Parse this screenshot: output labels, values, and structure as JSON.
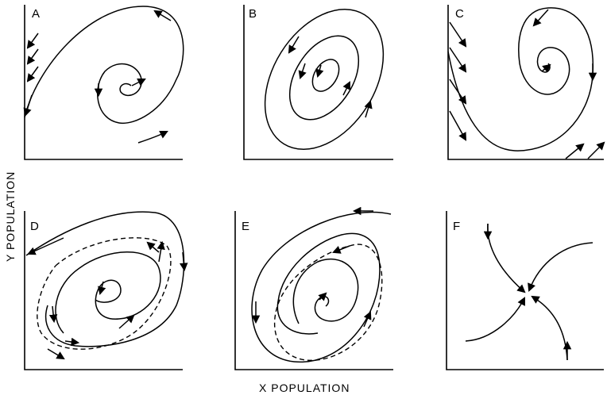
{
  "axes": {
    "x_title": "X  POPULATION",
    "y_title": "Y  POPULATION"
  },
  "panels": [
    {
      "letter": "A"
    },
    {
      "letter": "B"
    },
    {
      "letter": "C"
    },
    {
      "letter": "D"
    },
    {
      "letter": "E"
    },
    {
      "letter": "F"
    }
  ],
  "colors": {
    "ink": "#000000",
    "background": "#ffffff"
  }
}
